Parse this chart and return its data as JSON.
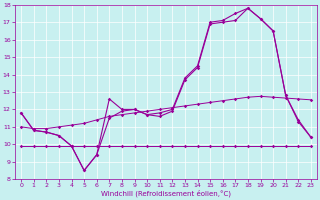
{
  "xlabel": "Windchill (Refroidissement éolien,°C)",
  "bg_color": "#c8f0f0",
  "line_color": "#990099",
  "x_values": [
    0,
    1,
    2,
    3,
    4,
    5,
    6,
    7,
    8,
    9,
    10,
    11,
    12,
    13,
    14,
    15,
    16,
    17,
    18,
    19,
    20,
    21,
    22,
    23
  ],
  "series1": [
    11.8,
    10.8,
    10.7,
    10.5,
    9.9,
    8.5,
    9.4,
    11.5,
    11.9,
    12.0,
    11.7,
    11.6,
    11.9,
    13.7,
    14.4,
    16.9,
    17.0,
    17.1,
    17.8,
    17.2,
    16.5,
    12.8,
    11.3,
    10.4
  ],
  "series2": [
    11.8,
    10.8,
    10.7,
    10.5,
    9.9,
    8.5,
    9.4,
    12.6,
    12.0,
    12.0,
    11.7,
    11.8,
    12.0,
    13.8,
    14.5,
    17.0,
    17.1,
    17.5,
    17.8,
    17.2,
    16.5,
    12.8,
    11.4,
    10.4
  ],
  "line_rising1": [
    11.0,
    10.9,
    10.9,
    11.0,
    11.1,
    11.2,
    11.4,
    11.6,
    11.7,
    11.8,
    11.9,
    12.0,
    12.1,
    12.2,
    12.3,
    12.4,
    12.5,
    12.6,
    12.7,
    12.75,
    12.7,
    12.65,
    12.6,
    12.55
  ],
  "line_flat": [
    9.9,
    9.9,
    9.9,
    9.9,
    9.9,
    9.9,
    9.9,
    9.9,
    9.9,
    9.9,
    9.9,
    9.9,
    9.9,
    9.9,
    9.9,
    9.9,
    9.9,
    9.9,
    9.9,
    9.9,
    9.9,
    9.9,
    9.9,
    9.9
  ],
  "ylim": [
    8,
    18
  ],
  "xlim_min": -0.5,
  "xlim_max": 23.5,
  "yticks": [
    8,
    9,
    10,
    11,
    12,
    13,
    14,
    15,
    16,
    17,
    18
  ],
  "xticks": [
    0,
    1,
    2,
    3,
    4,
    5,
    6,
    7,
    8,
    9,
    10,
    11,
    12,
    13,
    14,
    15,
    16,
    17,
    18,
    19,
    20,
    21,
    22,
    23
  ],
  "tick_fontsize": 4.5,
  "xlabel_fontsize": 5.0,
  "linewidth": 0.8,
  "markersize": 1.8
}
